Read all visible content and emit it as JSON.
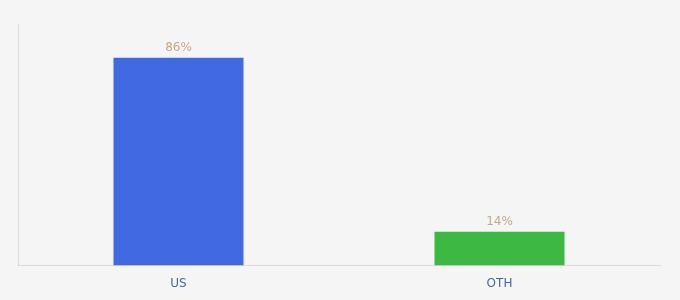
{
  "chart_data": {
    "type": "bar",
    "categories": [
      "US",
      "OTH"
    ],
    "values": [
      86,
      14
    ],
    "value_labels": [
      "86%",
      "14%"
    ],
    "colors": [
      "#4169E1",
      "#3CB843"
    ],
    "ylim": [
      0,
      100
    ],
    "grid": false,
    "data_labels": true,
    "tick_labels": "x"
  }
}
